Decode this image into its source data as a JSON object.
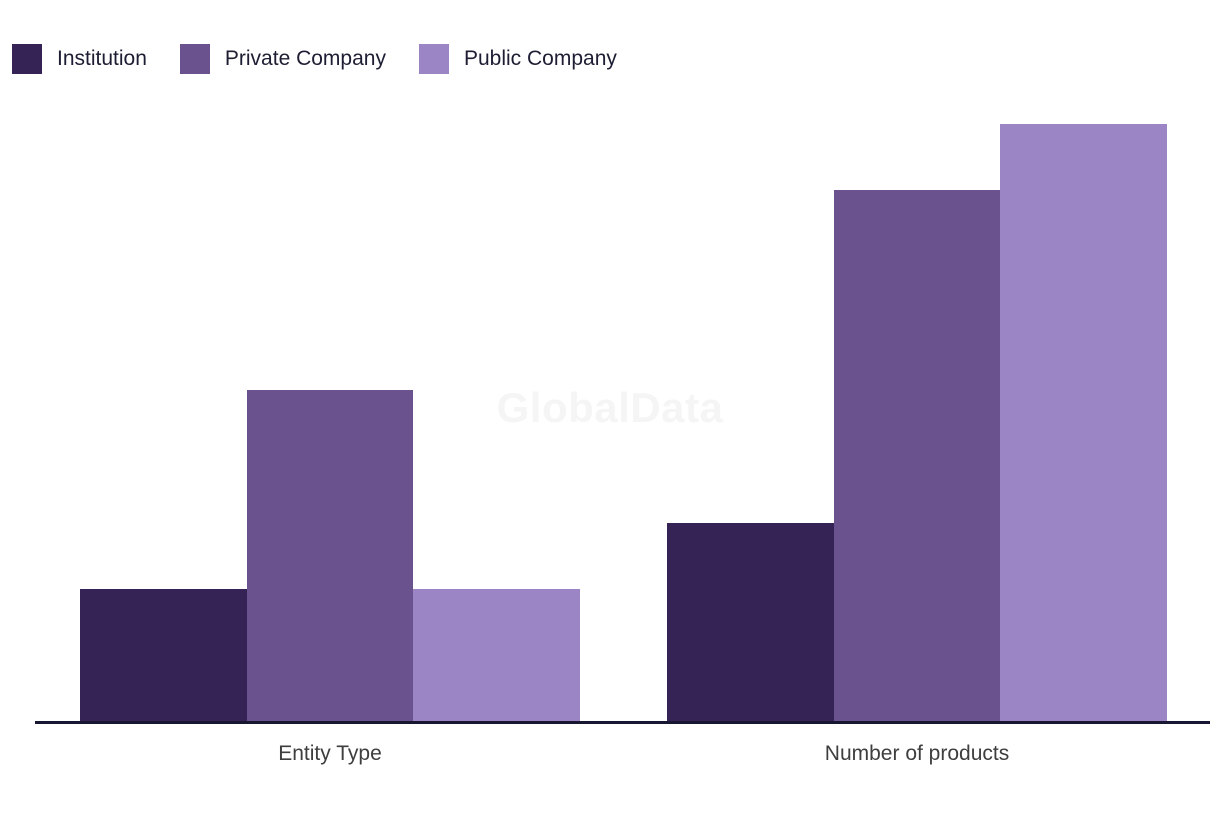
{
  "watermark": "GlobalData",
  "chart_data": {
    "type": "bar",
    "grouped": true,
    "title": "",
    "xlabel": "",
    "ylabel": "",
    "categories": [
      "Entity Type",
      "Number of products"
    ],
    "series": [
      {
        "name": "Institution",
        "color": "#362355",
        "values": [
          2,
          3
        ]
      },
      {
        "name": "Private Company",
        "color": "#69528D",
        "values": [
          5,
          8
        ]
      },
      {
        "name": "Public Company",
        "color": "#9C85C4",
        "values": [
          2,
          9
        ]
      }
    ],
    "ylim": [
      0,
      9
    ],
    "y_axis_visible": false,
    "grid": false,
    "legend_position": "top-left",
    "axis_line_color": "#181731"
  }
}
